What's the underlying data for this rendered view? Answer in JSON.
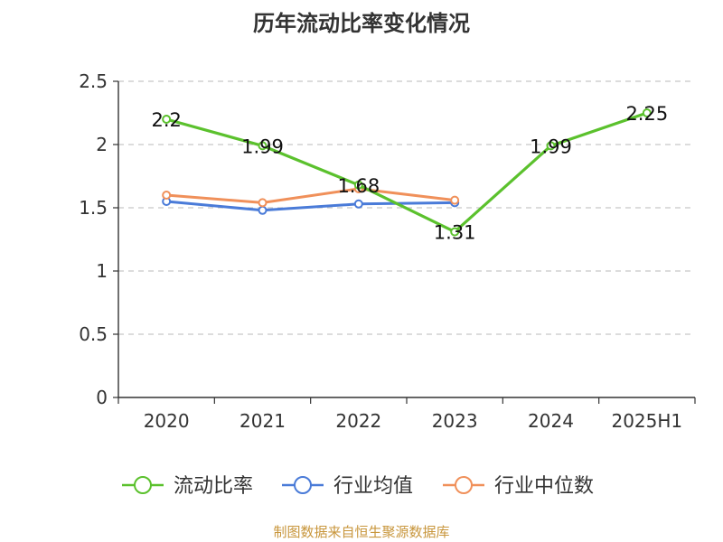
{
  "chart_data": {
    "type": "line",
    "title": "历年流动比率变化情况",
    "categories": [
      "2020",
      "2021",
      "2022",
      "2023",
      "2024",
      "2025H1"
    ],
    "ylim": [
      0,
      2.5
    ],
    "yticks": [
      "0",
      "0.5",
      "1",
      "1.5",
      "2",
      "2.5"
    ],
    "grid": true,
    "legend_position": "bottom",
    "series": [
      {
        "name": "流动比率",
        "color": "#5bc12d",
        "values": [
          2.2,
          1.99,
          1.68,
          1.31,
          1.99,
          2.25
        ],
        "labels": [
          "2.2",
          "1.99",
          "1.68",
          "1.31",
          "1.99",
          "2.25"
        ]
      },
      {
        "name": "行业均值",
        "color": "#4a7bd8",
        "values": [
          1.55,
          1.48,
          1.53,
          1.54,
          null,
          null
        ]
      },
      {
        "name": "行业中位数",
        "color": "#f0905a",
        "values": [
          1.6,
          1.54,
          1.65,
          1.56,
          null,
          null
        ]
      }
    ]
  },
  "footer": {
    "source": "制图数据来自恒生聚源数据库"
  }
}
